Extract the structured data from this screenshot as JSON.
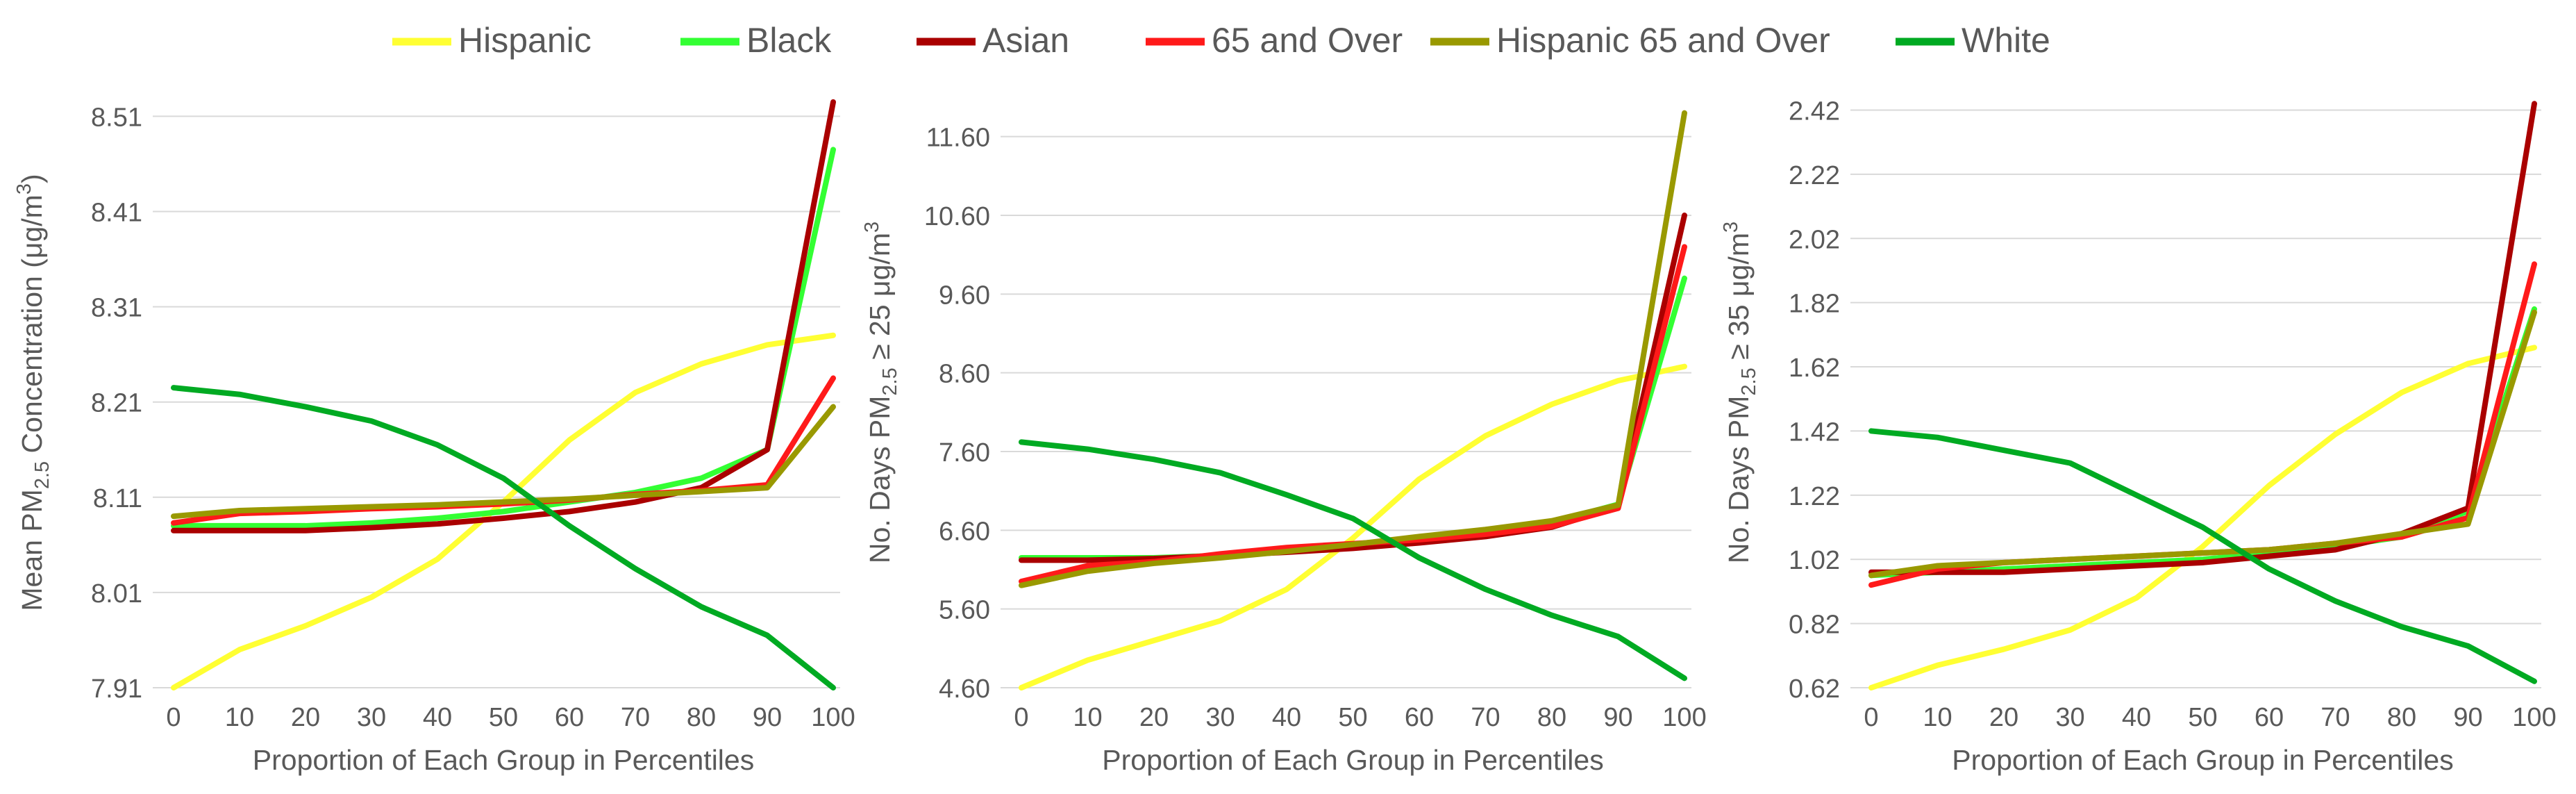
{
  "legend": [
    {
      "name": "Hispanic",
      "color": "#ffff33"
    },
    {
      "name": "Black",
      "color": "#33ff33"
    },
    {
      "name": "Asian",
      "color": "#aa0000"
    },
    {
      "name": "65 and Over",
      "color": "#ff1a1a"
    },
    {
      "name": "Hispanic 65 and Over",
      "color": "#999900"
    },
    {
      "name": "White",
      "color": "#00aa22"
    }
  ],
  "chart_data": [
    {
      "type": "line",
      "xlabel": "Proportion of Each Group in Percentiles",
      "ylabel": "Mean PM₂.₅ Concentration (μg/m³)",
      "ylabel_parts": {
        "pre": "Mean PM",
        "sub": "2.5",
        "mid": " Concentration (μg/m",
        "sup": "3",
        "post": ")"
      },
      "x": [
        0,
        10,
        20,
        30,
        40,
        50,
        60,
        70,
        80,
        90,
        100
      ],
      "yticks": [
        "7.91",
        "8.01",
        "8.11",
        "8.21",
        "8.31",
        "8.41",
        "8.51"
      ],
      "ylim": [
        7.91,
        8.53
      ],
      "grid": true,
      "series": [
        {
          "name": "Hispanic",
          "values": [
            7.91,
            7.95,
            7.975,
            8.005,
            8.045,
            8.105,
            8.17,
            8.22,
            8.25,
            8.27,
            8.28
          ]
        },
        {
          "name": "Black",
          "values": [
            8.08,
            8.08,
            8.08,
            8.083,
            8.088,
            8.095,
            8.105,
            8.115,
            8.13,
            8.16,
            8.475
          ]
        },
        {
          "name": "Asian",
          "values": [
            8.075,
            8.075,
            8.075,
            8.078,
            8.082,
            8.088,
            8.095,
            8.105,
            8.12,
            8.16,
            8.525
          ]
        },
        {
          "name": "65 and Over",
          "values": [
            8.083,
            8.093,
            8.095,
            8.098,
            8.1,
            8.103,
            8.107,
            8.113,
            8.117,
            8.123,
            8.235
          ]
        },
        {
          "name": "Hispanic 65 and Over",
          "values": [
            8.09,
            8.096,
            8.098,
            8.1,
            8.102,
            8.105,
            8.108,
            8.112,
            8.116,
            8.12,
            8.205
          ]
        },
        {
          "name": "White",
          "values": [
            8.225,
            8.218,
            8.205,
            8.19,
            8.165,
            8.13,
            8.08,
            8.035,
            7.995,
            7.965,
            7.91
          ]
        }
      ]
    },
    {
      "type": "line",
      "xlabel": "Proportion of Each Group in Percentiles",
      "ylabel": "No. Days PM₂.₅ ≥ 25 μg/m³",
      "ylabel_parts": {
        "pre": "No. Days PM",
        "sub": "2.5",
        "mid": " ≥ 25 μg/m",
        "sup": "3",
        "post": ""
      },
      "x": [
        0,
        10,
        20,
        30,
        40,
        50,
        60,
        70,
        80,
        90,
        100
      ],
      "yticks": [
        "4.60",
        "5.60",
        "6.60",
        "7.60",
        "8.60",
        "9.60",
        "10.60",
        "11.60"
      ],
      "ylim": [
        4.6,
        12.1
      ],
      "grid": true,
      "series": [
        {
          "name": "Hispanic",
          "values": [
            4.6,
            4.95,
            5.2,
            5.45,
            5.85,
            6.5,
            7.25,
            7.8,
            8.2,
            8.5,
            8.68
          ]
        },
        {
          "name": "Black",
          "values": [
            6.25,
            6.25,
            6.25,
            6.28,
            6.33,
            6.4,
            6.48,
            6.57,
            6.7,
            6.93,
            9.8
          ]
        },
        {
          "name": "Asian",
          "values": [
            6.22,
            6.22,
            6.24,
            6.28,
            6.32,
            6.37,
            6.44,
            6.52,
            6.64,
            6.9,
            10.6
          ]
        },
        {
          "name": "65 and Over",
          "values": [
            5.95,
            6.15,
            6.2,
            6.3,
            6.38,
            6.43,
            6.48,
            6.55,
            6.65,
            6.88,
            10.2
          ]
        },
        {
          "name": "Hispanic 65 and Over",
          "values": [
            5.9,
            6.08,
            6.18,
            6.25,
            6.33,
            6.42,
            6.52,
            6.61,
            6.72,
            6.92,
            11.9
          ]
        },
        {
          "name": "White",
          "values": [
            7.72,
            7.63,
            7.5,
            7.33,
            7.05,
            6.75,
            6.25,
            5.85,
            5.52,
            5.25,
            4.72
          ]
        }
      ]
    },
    {
      "type": "line",
      "xlabel": "Proportion of Each Group in Percentiles",
      "ylabel": "No. Days PM₂.₅ ≥ 35 μg/m³",
      "ylabel_parts": {
        "pre": "No. Days PM",
        "sub": "2.5",
        "mid": " ≥ 35 μg/m",
        "sup": "3",
        "post": ""
      },
      "x": [
        0,
        10,
        20,
        30,
        40,
        50,
        60,
        70,
        80,
        90,
        100
      ],
      "yticks": [
        "0.62",
        "0.82",
        "1.02",
        "1.22",
        "1.42",
        "1.62",
        "1.82",
        "2.02",
        "2.22",
        "2.42"
      ],
      "ylim": [
        0.62,
        2.46
      ],
      "grid": true,
      "series": [
        {
          "name": "Hispanic",
          "values": [
            0.62,
            0.69,
            0.74,
            0.8,
            0.9,
            1.06,
            1.25,
            1.41,
            1.54,
            1.63,
            1.68
          ]
        },
        {
          "name": "Black",
          "values": [
            0.97,
            0.98,
            0.99,
            1.0,
            1.01,
            1.02,
            1.04,
            1.06,
            1.09,
            1.17,
            1.8
          ]
        },
        {
          "name": "Asian",
          "values": [
            0.98,
            0.98,
            0.98,
            0.99,
            1.0,
            1.01,
            1.03,
            1.05,
            1.1,
            1.18,
            2.44
          ]
        },
        {
          "name": "65 and Over",
          "values": [
            0.94,
            0.99,
            1.01,
            1.02,
            1.03,
            1.04,
            1.05,
            1.07,
            1.09,
            1.15,
            1.94
          ]
        },
        {
          "name": "Hispanic 65 and Over",
          "values": [
            0.97,
            1.0,
            1.01,
            1.02,
            1.03,
            1.04,
            1.05,
            1.07,
            1.1,
            1.13,
            1.79
          ]
        },
        {
          "name": "White",
          "values": [
            1.42,
            1.4,
            1.36,
            1.32,
            1.22,
            1.12,
            0.99,
            0.89,
            0.81,
            0.75,
            0.64
          ]
        }
      ]
    }
  ]
}
